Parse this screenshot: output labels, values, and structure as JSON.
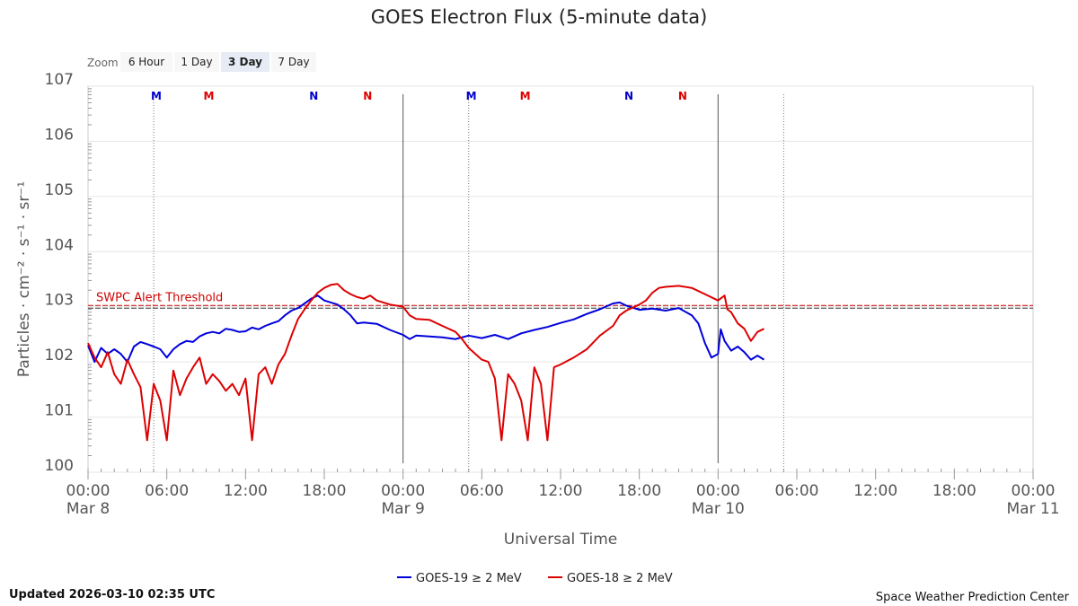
{
  "header": {
    "title": "GOES Electron Flux (5-minute data)"
  },
  "zoom": {
    "label": "Zoom",
    "buttons": [
      {
        "label": "6 Hour",
        "active": false
      },
      {
        "label": "1 Day",
        "active": false
      },
      {
        "label": "3 Day",
        "active": true
      },
      {
        "label": "7 Day",
        "active": false
      }
    ]
  },
  "threshold": {
    "label": "SWPC Alert Threshold",
    "value": 1000,
    "color": "#cc0000"
  },
  "markers": [
    {
      "letter": "M",
      "color": "#0000cc",
      "time_h": 5.2
    },
    {
      "letter": "M",
      "color": "#dd0000",
      "time_h": 9.2
    },
    {
      "letter": "N",
      "color": "#0000cc",
      "time_h": 17.2
    },
    {
      "letter": "N",
      "color": "#dd0000",
      "time_h": 21.3
    },
    {
      "letter": "M",
      "color": "#0000cc",
      "time_h": 29.2
    },
    {
      "letter": "M",
      "color": "#dd0000",
      "time_h": 33.3
    },
    {
      "letter": "N",
      "color": "#0000cc",
      "time_h": 41.2
    },
    {
      "letter": "N",
      "color": "#dd0000",
      "time_h": 45.3
    }
  ],
  "footer": {
    "updated": "Updated 2026-03-10 02:35 UTC",
    "credit": "Space Weather Prediction Center"
  },
  "chart_data": {
    "type": "line",
    "xlabel": "Universal Time",
    "ylabel": "Particles · cm⁻² · s⁻¹ · sr⁻¹",
    "y_scale": "log",
    "ylim": [
      1,
      10000000
    ],
    "y_ticks": [
      {
        "value": 1,
        "base": "10",
        "exp": "0"
      },
      {
        "value": 10,
        "base": "10",
        "exp": "1"
      },
      {
        "value": 100,
        "base": "10",
        "exp": "2"
      },
      {
        "value": 1000,
        "base": "10",
        "exp": "3"
      },
      {
        "value": 10000,
        "base": "10",
        "exp": "4"
      },
      {
        "value": 100000,
        "base": "10",
        "exp": "5"
      },
      {
        "value": 1000000,
        "base": "10",
        "exp": "6"
      },
      {
        "value": 10000000,
        "base": "10",
        "exp": "7"
      }
    ],
    "x_range_hours": [
      0,
      72
    ],
    "x_ticks": [
      {
        "hour": 0,
        "label": "00:00",
        "date": "Mar 8"
      },
      {
        "hour": 6,
        "label": "06:00",
        "date": ""
      },
      {
        "hour": 12,
        "label": "12:00",
        "date": ""
      },
      {
        "hour": 18,
        "label": "18:00",
        "date": ""
      },
      {
        "hour": 24,
        "label": "00:00",
        "date": "Mar 9"
      },
      {
        "hour": 30,
        "label": "06:00",
        "date": ""
      },
      {
        "hour": 36,
        "label": "12:00",
        "date": ""
      },
      {
        "hour": 42,
        "label": "18:00",
        "date": ""
      },
      {
        "hour": 48,
        "label": "00:00",
        "date": "Mar 10"
      },
      {
        "hour": 54,
        "label": "06:00",
        "date": ""
      },
      {
        "hour": 60,
        "label": "12:00",
        "date": ""
      },
      {
        "hour": 66,
        "label": "18:00",
        "date": ""
      },
      {
        "hour": 72,
        "label": "00:00",
        "date": "Mar 11"
      }
    ],
    "day_lines_hours": [
      24,
      48
    ],
    "dotted_lines_hours": [
      5,
      29,
      53
    ],
    "legend": "bottom-center",
    "series": [
      {
        "name": "GOES-19 ≥ 2 MeV",
        "color": "#0000dd",
        "points": [
          [
            0,
            200
          ],
          [
            0.5,
            100
          ],
          [
            1,
            180
          ],
          [
            1.5,
            140
          ],
          [
            2,
            170
          ],
          [
            2.5,
            140
          ],
          [
            3,
            100
          ],
          [
            3.5,
            190
          ],
          [
            4,
            230
          ],
          [
            4.5,
            210
          ],
          [
            5,
            190
          ],
          [
            5.5,
            170
          ],
          [
            6,
            120
          ],
          [
            6.5,
            170
          ],
          [
            7,
            210
          ],
          [
            7.5,
            240
          ],
          [
            8,
            230
          ],
          [
            8.5,
            290
          ],
          [
            9,
            330
          ],
          [
            9.5,
            350
          ],
          [
            10,
            330
          ],
          [
            10.5,
            400
          ],
          [
            11,
            380
          ],
          [
            11.5,
            350
          ],
          [
            12,
            360
          ],
          [
            12.5,
            420
          ],
          [
            13,
            390
          ],
          [
            13.5,
            450
          ],
          [
            14,
            500
          ],
          [
            14.5,
            550
          ],
          [
            15,
            700
          ],
          [
            15.5,
            850
          ],
          [
            16,
            950
          ],
          [
            16.5,
            1150
          ],
          [
            17,
            1400
          ],
          [
            17.5,
            1600
          ],
          [
            18,
            1300
          ],
          [
            18.5,
            1200
          ],
          [
            19,
            1100
          ],
          [
            19.5,
            900
          ],
          [
            20,
            700
          ],
          [
            20.5,
            500
          ],
          [
            21,
            520
          ],
          [
            22,
            490
          ],
          [
            23,
            380
          ],
          [
            24,
            310
          ],
          [
            24.5,
            260
          ],
          [
            25,
            300
          ],
          [
            26,
            290
          ],
          [
            27,
            280
          ],
          [
            28,
            260
          ],
          [
            29,
            300
          ],
          [
            30,
            270
          ],
          [
            31,
            310
          ],
          [
            32,
            260
          ],
          [
            33,
            330
          ],
          [
            34,
            380
          ],
          [
            35,
            430
          ],
          [
            36,
            510
          ],
          [
            37,
            590
          ],
          [
            38,
            740
          ],
          [
            39,
            900
          ],
          [
            40,
            1150
          ],
          [
            40.5,
            1200
          ],
          [
            41,
            1050
          ],
          [
            42,
            880
          ],
          [
            43,
            930
          ],
          [
            44,
            850
          ],
          [
            45,
            950
          ],
          [
            46,
            700
          ],
          [
            46.5,
            500
          ],
          [
            47,
            220
          ],
          [
            47.5,
            120
          ],
          [
            48,
            140
          ],
          [
            48.2,
            390
          ],
          [
            48.5,
            240
          ],
          [
            49,
            160
          ],
          [
            49.5,
            190
          ],
          [
            50,
            150
          ],
          [
            50.5,
            110
          ],
          [
            51,
            130
          ],
          [
            51.5,
            110
          ]
        ]
      },
      {
        "name": "GOES-18 ≥ 2 MeV",
        "color": "#dd0000",
        "points": [
          [
            0,
            220
          ],
          [
            0.5,
            120
          ],
          [
            1,
            80
          ],
          [
            1.5,
            150
          ],
          [
            2,
            60
          ],
          [
            2.5,
            40
          ],
          [
            3,
            110
          ],
          [
            3.5,
            60
          ],
          [
            4,
            35
          ],
          [
            4.5,
            3.8
          ],
          [
            5,
            40
          ],
          [
            5.5,
            20
          ],
          [
            6,
            3.8
          ],
          [
            6.5,
            70
          ],
          [
            7,
            25
          ],
          [
            7.5,
            50
          ],
          [
            8,
            80
          ],
          [
            8.5,
            120
          ],
          [
            9,
            40
          ],
          [
            9.5,
            60
          ],
          [
            10,
            45
          ],
          [
            10.5,
            30
          ],
          [
            11,
            40
          ],
          [
            11.5,
            25
          ],
          [
            12,
            50
          ],
          [
            12.5,
            3.8
          ],
          [
            13,
            60
          ],
          [
            13.5,
            80
          ],
          [
            14,
            40
          ],
          [
            14.5,
            90
          ],
          [
            15,
            140
          ],
          [
            15.5,
            300
          ],
          [
            16,
            600
          ],
          [
            16.5,
            900
          ],
          [
            17,
            1300
          ],
          [
            17.5,
            1800
          ],
          [
            18,
            2200
          ],
          [
            18.5,
            2500
          ],
          [
            19,
            2600
          ],
          [
            19.5,
            2000
          ],
          [
            20,
            1700
          ],
          [
            20.5,
            1500
          ],
          [
            21,
            1400
          ],
          [
            21.5,
            1600
          ],
          [
            22,
            1300
          ],
          [
            22.5,
            1200
          ],
          [
            23,
            1100
          ],
          [
            24,
            1000
          ],
          [
            24.5,
            700
          ],
          [
            25,
            600
          ],
          [
            26,
            580
          ],
          [
            27,
            450
          ],
          [
            28,
            350
          ],
          [
            28.5,
            260
          ],
          [
            29,
            180
          ],
          [
            30,
            110
          ],
          [
            30.5,
            100
          ],
          [
            31,
            50
          ],
          [
            31.5,
            3.8
          ],
          [
            32,
            60
          ],
          [
            32.5,
            40
          ],
          [
            33,
            20
          ],
          [
            33.5,
            3.8
          ],
          [
            34,
            80
          ],
          [
            34.5,
            40
          ],
          [
            35,
            3.8
          ],
          [
            35.5,
            80
          ],
          [
            36,
            90
          ],
          [
            37,
            120
          ],
          [
            38,
            170
          ],
          [
            39,
            300
          ],
          [
            40,
            450
          ],
          [
            40.5,
            700
          ],
          [
            41,
            850
          ],
          [
            42,
            1100
          ],
          [
            42.5,
            1300
          ],
          [
            43,
            1800
          ],
          [
            43.5,
            2200
          ],
          [
            44,
            2300
          ],
          [
            45,
            2400
          ],
          [
            46,
            2200
          ],
          [
            47,
            1700
          ],
          [
            48,
            1300
          ],
          [
            48.5,
            1600
          ],
          [
            48.7,
            900
          ],
          [
            49,
            800
          ],
          [
            49.5,
            500
          ],
          [
            50,
            400
          ],
          [
            50.5,
            240
          ],
          [
            51,
            350
          ],
          [
            51.5,
            400
          ]
        ]
      }
    ]
  }
}
